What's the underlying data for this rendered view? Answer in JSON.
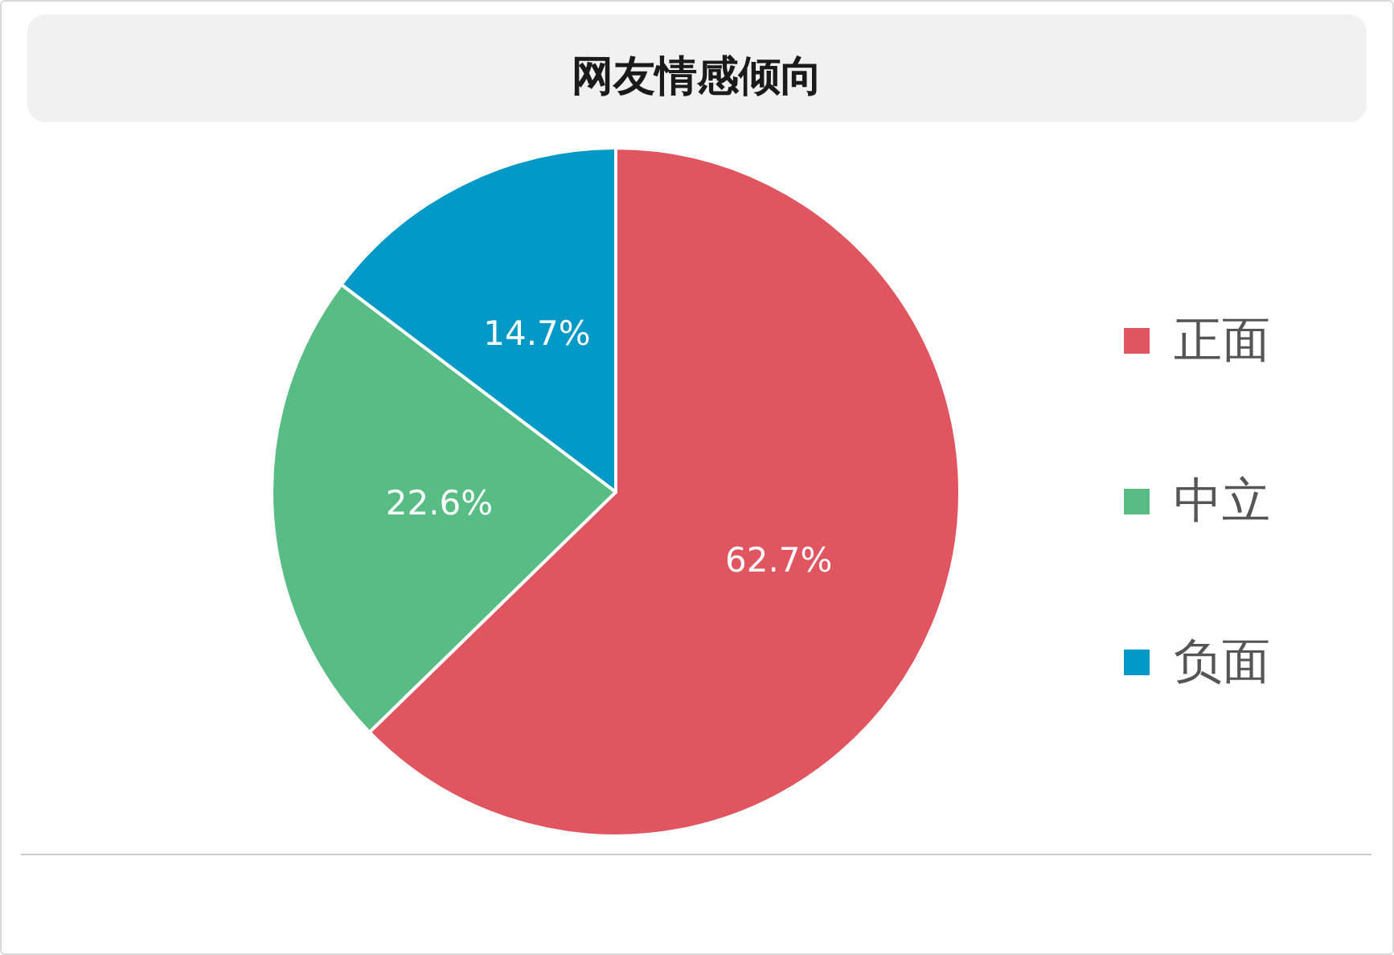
{
  "chart_data": {
    "type": "pie",
    "title": "网友情感倾向",
    "categories": [
      "正面",
      "中立",
      "负面"
    ],
    "values": [
      62.7,
      22.6,
      14.7
    ],
    "colors": [
      "#e0555f",
      "#57bd85",
      "#0399c6"
    ],
    "value_labels": [
      "62.7%",
      "22.6%",
      "14.7%"
    ],
    "legend": "right"
  }
}
